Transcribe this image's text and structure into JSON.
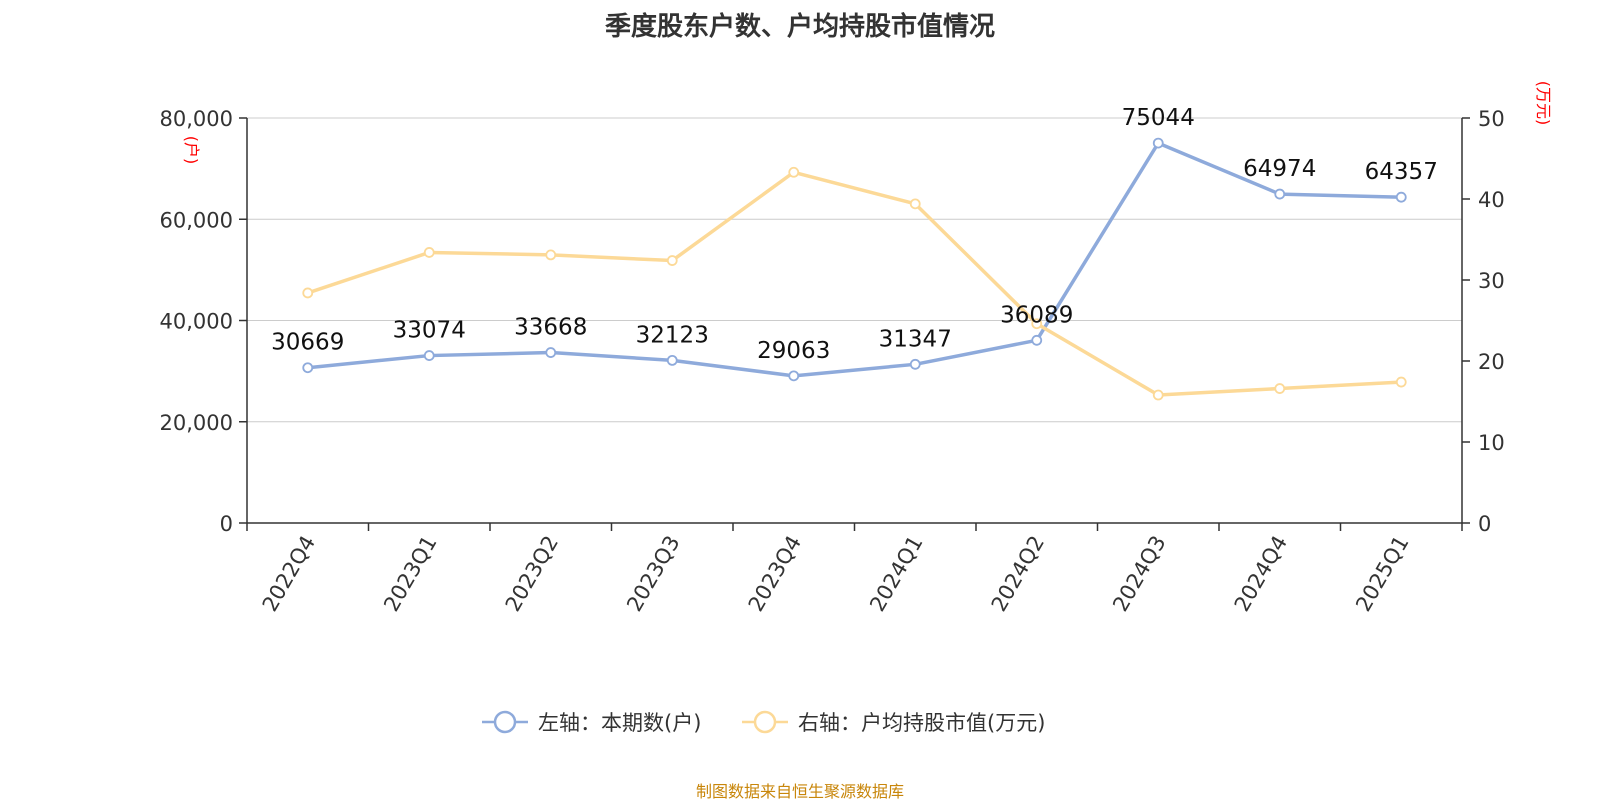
{
  "chart_data": {
    "type": "line",
    "title": "季度股东户数、户均持股市值情况",
    "categories": [
      "2022Q4",
      "2023Q1",
      "2023Q2",
      "2023Q3",
      "2023Q4",
      "2024Q1",
      "2024Q2",
      "2024Q3",
      "2024Q4",
      "2025Q1"
    ],
    "y_left": {
      "unit": "(户)",
      "ylim": [
        0,
        80000
      ],
      "ticks": [
        "0",
        "20,000",
        "40,000",
        "60,000",
        "80,000"
      ],
      "tick_values": [
        0,
        20000,
        40000,
        60000,
        80000
      ]
    },
    "y_right": {
      "unit": "(万元)",
      "ylim": [
        0,
        50
      ],
      "ticks": [
        "0",
        "10",
        "20",
        "30",
        "40",
        "50"
      ],
      "tick_values": [
        0,
        10,
        20,
        30,
        40,
        50
      ]
    },
    "grid": true,
    "legend_position": "bottom",
    "series": [
      {
        "name": "左轴：本期数(户)",
        "axis": "left",
        "color": "#8eaadb",
        "values": [
          30669,
          33074,
          33668,
          32123,
          29063,
          31347,
          36089,
          75044,
          64974,
          64357
        ],
        "labels": [
          "30669",
          "33074",
          "33668",
          "32123",
          "29063",
          "31347",
          "36089",
          "75044",
          "64974",
          "64357"
        ]
      },
      {
        "name": "右轴：户均持股市值(万元)",
        "axis": "right",
        "color": "#fcd997",
        "values": [
          28.4,
          33.4,
          33.1,
          32.4,
          43.3,
          39.4,
          24.6,
          15.8,
          16.6,
          17.4
        ]
      }
    ]
  },
  "source": "制图数据来自恒生聚源数据库",
  "colors": {
    "unit_label": "#ff0000",
    "source": "#c8860a",
    "axis": "#333333",
    "grid": "#cccccc"
  }
}
